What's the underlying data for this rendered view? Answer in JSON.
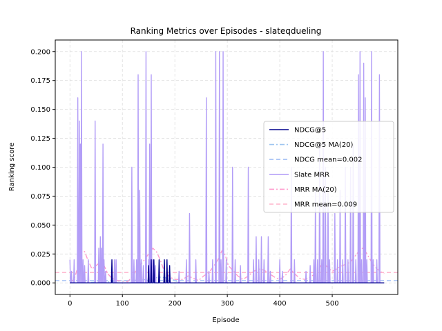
{
  "chart_data": {
    "type": "line",
    "title": "Ranking Metrics over Episodes - slateqdueling",
    "xlabel": "Episode",
    "ylabel": "Ranking score",
    "xlim": [
      -28,
      625
    ],
    "ylim": [
      -0.01,
      0.21
    ],
    "x_ticks": [
      0,
      100,
      200,
      300,
      400,
      500
    ],
    "y_ticks": [
      0.0,
      0.025,
      0.05,
      0.075,
      0.1,
      0.125,
      0.15,
      0.175,
      0.2
    ],
    "y_tick_labels": [
      "0.000",
      "0.025",
      "0.050",
      "0.075",
      "0.100",
      "0.125",
      "0.150",
      "0.175",
      "0.200"
    ],
    "grid": true,
    "legend_position": "center-right",
    "n_episodes": 600,
    "series": [
      {
        "name": "NDCG@5",
        "style": "solid",
        "color": "#00008b",
        "spikes": [
          [
            80,
            0.02
          ],
          [
            150,
            0.015
          ],
          [
            155,
            0.02
          ],
          [
            160,
            0.02
          ],
          [
            170,
            0.02
          ],
          [
            180,
            0.02
          ],
          [
            185,
            0.02
          ],
          [
            190,
            0.015
          ]
        ]
      },
      {
        "name": "NDCG@5 MA(20)",
        "style": "dashdot",
        "color": "#9ec5f0",
        "points": [
          [
            0,
            0.0
          ],
          [
            80,
            0.001
          ],
          [
            150,
            0.003
          ],
          [
            170,
            0.005
          ],
          [
            190,
            0.004
          ],
          [
            210,
            0.0
          ],
          [
            599,
            0.0
          ]
        ]
      },
      {
        "name": "NDCG mean=0.002",
        "style": "dashed",
        "color": "#a9c4f5",
        "value": 0.002
      },
      {
        "name": "Slate MRR",
        "style": "solid",
        "color": "#b39ef7",
        "spikes": [
          [
            0,
            0.02
          ],
          [
            3,
            0.01
          ],
          [
            8,
            0.02
          ],
          [
            15,
            0.16
          ],
          [
            18,
            0.14
          ],
          [
            20,
            0.12
          ],
          [
            22,
            0.2
          ],
          [
            25,
            0.02
          ],
          [
            28,
            0.015
          ],
          [
            35,
            0.02
          ],
          [
            48,
            0.14
          ],
          [
            55,
            0.03
          ],
          [
            58,
            0.04
          ],
          [
            60,
            0.03
          ],
          [
            63,
            0.12
          ],
          [
            65,
            0.02
          ],
          [
            68,
            0.01
          ],
          [
            85,
            0.02
          ],
          [
            88,
            0.02
          ],
          [
            118,
            0.1
          ],
          [
            122,
            0.02
          ],
          [
            127,
            0.02
          ],
          [
            130,
            0.18
          ],
          [
            133,
            0.08
          ],
          [
            136,
            0.02
          ],
          [
            140,
            0.015
          ],
          [
            145,
            0.2
          ],
          [
            150,
            0.02
          ],
          [
            152,
            0.12
          ],
          [
            155,
            0.18
          ],
          [
            158,
            0.02
          ],
          [
            160,
            0.02
          ],
          [
            163,
            0.015
          ],
          [
            180,
            0.01
          ],
          [
            190,
            0.015
          ],
          [
            208,
            0.01
          ],
          [
            222,
            0.02
          ],
          [
            228,
            0.06
          ],
          [
            240,
            0.02
          ],
          [
            260,
            0.16
          ],
          [
            265,
            0.01
          ],
          [
            272,
            0.02
          ],
          [
            278,
            0.2
          ],
          [
            285,
            0.2
          ],
          [
            288,
            0.02
          ],
          [
            292,
            0.2
          ],
          [
            298,
            0.02
          ],
          [
            310,
            0.1
          ],
          [
            315,
            0.02
          ],
          [
            325,
            0.015
          ],
          [
            340,
            0.1
          ],
          [
            350,
            0.02
          ],
          [
            355,
            0.04
          ],
          [
            360,
            0.02
          ],
          [
            365,
            0.04
          ],
          [
            370,
            0.02
          ],
          [
            378,
            0.04
          ],
          [
            382,
            0.01
          ],
          [
            400,
            0.02
          ],
          [
            405,
            0.01
          ],
          [
            422,
            0.1
          ],
          [
            428,
            0.02
          ],
          [
            450,
            0.01
          ],
          [
            458,
            0.015
          ],
          [
            465,
            0.02
          ],
          [
            468,
            0.08
          ],
          [
            472,
            0.02
          ],
          [
            476,
            0.12
          ],
          [
            480,
            0.02
          ],
          [
            483,
            0.2
          ],
          [
            487,
            0.1
          ],
          [
            492,
            0.08
          ],
          [
            495,
            0.02
          ],
          [
            505,
            0.06
          ],
          [
            510,
            0.02
          ],
          [
            515,
            0.08
          ],
          [
            520,
            0.02
          ],
          [
            525,
            0.1
          ],
          [
            530,
            0.02
          ],
          [
            535,
            0.1
          ],
          [
            540,
            0.12
          ],
          [
            545,
            0.02
          ],
          [
            550,
            0.18
          ],
          [
            553,
            0.2
          ],
          [
            556,
            0.02
          ],
          [
            560,
            0.19
          ],
          [
            563,
            0.16
          ],
          [
            566,
            0.02
          ],
          [
            575,
            0.2
          ],
          [
            578,
            0.02
          ],
          [
            585,
            0.02
          ],
          [
            590,
            0.18
          ]
        ]
      },
      {
        "name": "MRR MA(20)",
        "style": "dashdot",
        "color": "#ff99cc",
        "points": [
          [
            0,
            0.0
          ],
          [
            8,
            0.003
          ],
          [
            14,
            0.012
          ],
          [
            18,
            0.02
          ],
          [
            22,
            0.028
          ],
          [
            28,
            0.027
          ],
          [
            34,
            0.02
          ],
          [
            42,
            0.012
          ],
          [
            50,
            0.015
          ],
          [
            58,
            0.018
          ],
          [
            64,
            0.016
          ],
          [
            72,
            0.008
          ],
          [
            80,
            0.004
          ],
          [
            90,
            0.002
          ],
          [
            110,
            0.001
          ],
          [
            120,
            0.006
          ],
          [
            128,
            0.012
          ],
          [
            135,
            0.016
          ],
          [
            142,
            0.02
          ],
          [
            150,
            0.025
          ],
          [
            158,
            0.03
          ],
          [
            165,
            0.027
          ],
          [
            172,
            0.02
          ],
          [
            180,
            0.01
          ],
          [
            190,
            0.005
          ],
          [
            200,
            0.003
          ],
          [
            215,
            0.003
          ],
          [
            225,
            0.006
          ],
          [
            235,
            0.004
          ],
          [
            245,
            0.002
          ],
          [
            255,
            0.006
          ],
          [
            265,
            0.009
          ],
          [
            275,
            0.015
          ],
          [
            282,
            0.02
          ],
          [
            290,
            0.028
          ],
          [
            296,
            0.024
          ],
          [
            302,
            0.015
          ],
          [
            312,
            0.01
          ],
          [
            320,
            0.006
          ],
          [
            330,
            0.003
          ],
          [
            340,
            0.006
          ],
          [
            350,
            0.01
          ],
          [
            360,
            0.012
          ],
          [
            370,
            0.011
          ],
          [
            380,
            0.008
          ],
          [
            390,
            0.005
          ],
          [
            400,
            0.003
          ],
          [
            410,
            0.006
          ],
          [
            420,
            0.012
          ],
          [
            428,
            0.008
          ],
          [
            438,
            0.004
          ],
          [
            448,
            0.003
          ],
          [
            458,
            0.005
          ],
          [
            468,
            0.008
          ],
          [
            475,
            0.012
          ],
          [
            483,
            0.018
          ],
          [
            490,
            0.014
          ],
          [
            500,
            0.01
          ],
          [
            508,
            0.012
          ],
          [
            515,
            0.014
          ],
          [
            525,
            0.016
          ],
          [
            535,
            0.018
          ],
          [
            545,
            0.024
          ],
          [
            552,
            0.028
          ],
          [
            558,
            0.03
          ],
          [
            565,
            0.026
          ],
          [
            575,
            0.018
          ],
          [
            585,
            0.012
          ],
          [
            595,
            0.009
          ],
          [
            599,
            0.008
          ]
        ]
      },
      {
        "name": "MRR mean=0.009",
        "style": "dashed",
        "color": "#ffb3cc",
        "value": 0.009
      }
    ]
  }
}
